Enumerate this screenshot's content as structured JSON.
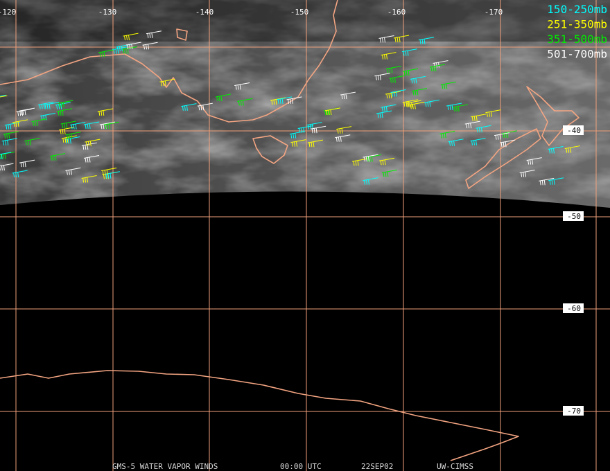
{
  "map": {
    "longitude_labels": [
      "-120",
      "-130",
      "-140",
      "-150",
      "-160",
      "-170"
    ],
    "latitude_labels": [
      "-40",
      "-50",
      "-60",
      "-70"
    ]
  },
  "legend": [
    {
      "label": "150-250mb",
      "color": "#00ffff"
    },
    {
      "label": "251-350mb",
      "color": "#ffff00"
    },
    {
      "label": "351-500mb",
      "color": "#00ee00"
    },
    {
      "label": "501-700mb",
      "color": "#ffffff"
    }
  ],
  "footer": [
    "GMS-5 WATER VAPOR WINDS",
    "00:00 UTC",
    "22SEP02",
    "UW-CIMSS"
  ]
}
